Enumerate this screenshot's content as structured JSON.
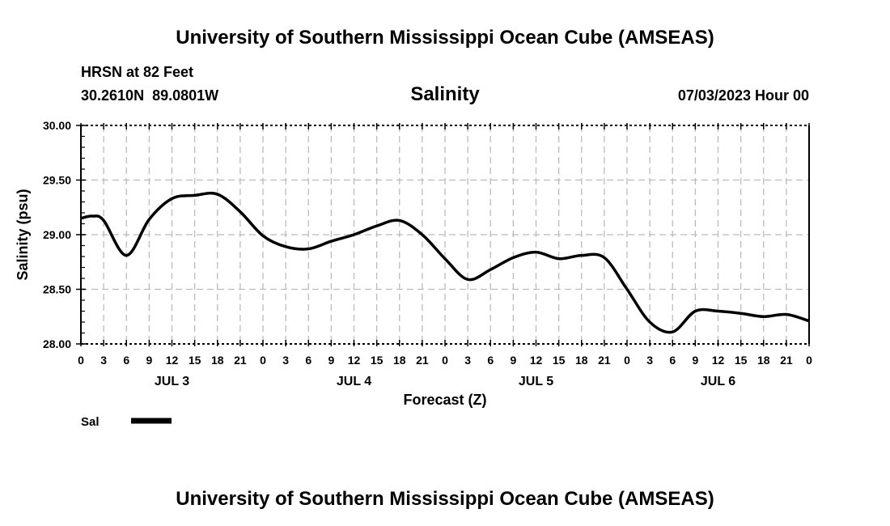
{
  "header": {
    "title": "University of Southern Mississippi Ocean Cube (AMSEAS)",
    "station": "HRSN at 82 Feet",
    "coords": "30.2610N  89.0801W",
    "variable": "Salinity",
    "datetime": "07/03/2023 Hour 00"
  },
  "footer": {
    "title": "University of Southern Mississippi Ocean Cube (AMSEAS)"
  },
  "chart_data": {
    "type": "line",
    "title": "Salinity",
    "xlabel": "Forecast (Z)",
    "ylabel": "Salinity (psu)",
    "ylim": [
      28.0,
      30.0
    ],
    "xlim_hours": [
      0,
      96
    ],
    "grid": true,
    "y_ticks": [
      "28.00",
      "28.50",
      "29.00",
      "29.50",
      "30.00"
    ],
    "x_tick_labels": [
      "0",
      "3",
      "6",
      "9",
      "12",
      "15",
      "18",
      "21",
      "0",
      "3",
      "6",
      "9",
      "12",
      "15",
      "18",
      "21",
      "0",
      "3",
      "6",
      "9",
      "12",
      "15",
      "18",
      "21",
      "0",
      "3",
      "6",
      "9",
      "12",
      "15",
      "18",
      "21",
      "0"
    ],
    "day_labels": [
      "JUL 3",
      "JUL 4",
      "JUL 5",
      "JUL 6"
    ],
    "legend": {
      "position": "bottom-left",
      "entries": [
        {
          "name": "Sal",
          "color": "#000000"
        }
      ]
    },
    "series": [
      {
        "name": "Sal",
        "color": "#000000",
        "x_hours": [
          0,
          1.5,
          3,
          6,
          9,
          12,
          15,
          18,
          21,
          24,
          27,
          30,
          33,
          36,
          39,
          42,
          45,
          48,
          51,
          54,
          57,
          60,
          63,
          66,
          69,
          72,
          75,
          78,
          81,
          84,
          87,
          90,
          93,
          96
        ],
        "values": [
          29.15,
          29.17,
          29.13,
          28.81,
          29.14,
          29.33,
          29.36,
          29.37,
          29.21,
          28.99,
          28.89,
          28.87,
          28.94,
          29.0,
          29.08,
          29.13,
          29.0,
          28.78,
          28.59,
          28.68,
          28.79,
          28.84,
          28.78,
          28.81,
          28.79,
          28.5,
          28.2,
          28.11,
          28.3,
          28.3,
          28.28,
          28.25,
          28.27,
          28.21
        ]
      }
    ]
  }
}
